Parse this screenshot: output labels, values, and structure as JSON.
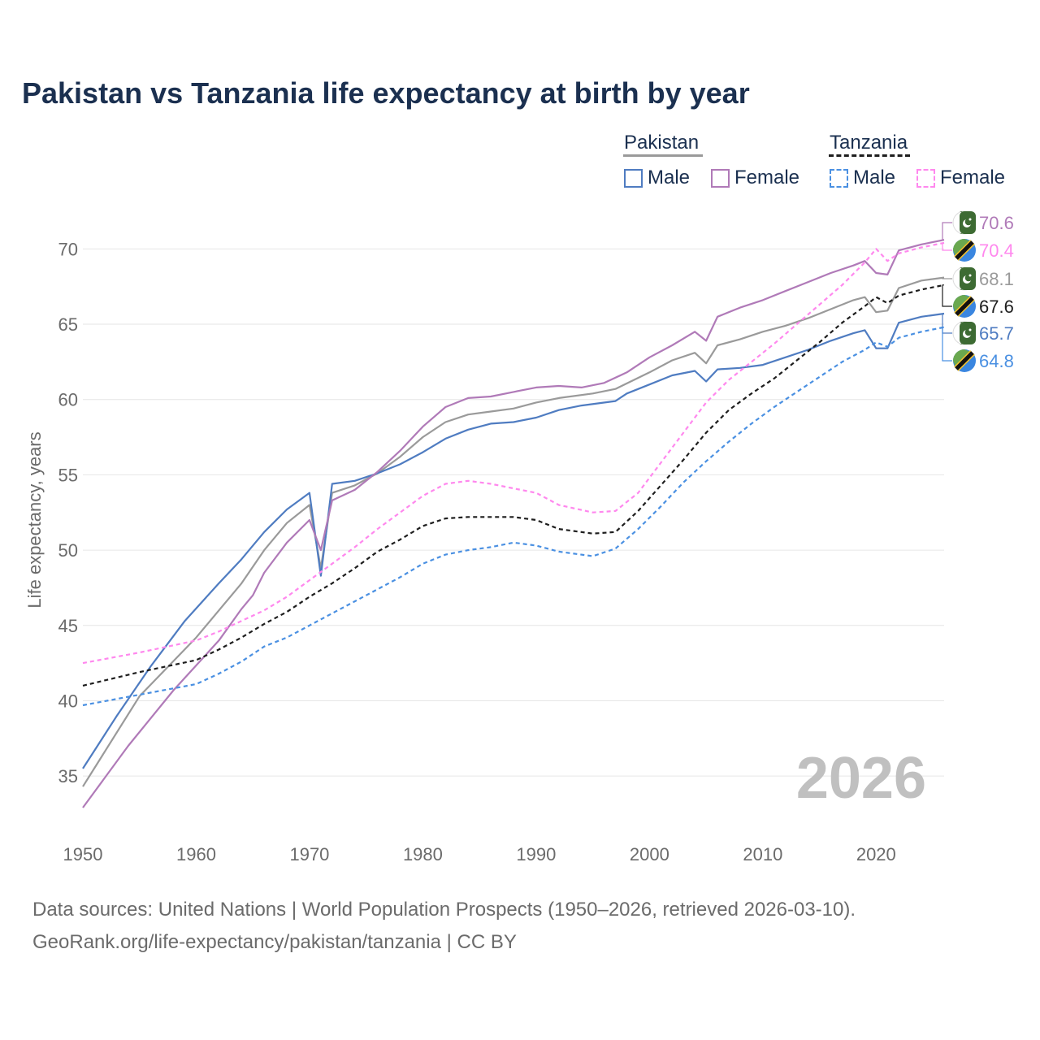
{
  "title": "Pakistan vs Tanzania life expectancy at birth by year",
  "legend": {
    "pakistan": {
      "title": "Pakistan",
      "male": "Male",
      "female": "Female"
    },
    "tanzania": {
      "title": "Tanzania",
      "male": "Male",
      "female": "Female"
    }
  },
  "footer": {
    "source": "Data sources: United Nations | World Population Prospects (1950–2026, retrieved 2026-03-10).",
    "credit": "GeoRank.org/life-expectancy/pakistan/tanzania | CC BY"
  },
  "colors": {
    "pk_total": "#9a9a9a",
    "pk_male": "#4f7cc1",
    "pk_female": "#b07ab8",
    "tz_total": "#1e1e1e",
    "tz_male": "#4a90e2",
    "tz_female": "#ff88ee",
    "grid": "#e6e6e6",
    "axis_text": "#6b6b6b",
    "title": "#1b3050",
    "watermark": "#c0c0c0"
  },
  "chart_data": {
    "type": "line",
    "ylabel": "Life expectancy, years",
    "xlabel": "",
    "xlim": [
      1950,
      2026
    ],
    "ylim": [
      31.5,
      72.5
    ],
    "x_ticks": [
      1950,
      1960,
      1970,
      1980,
      1990,
      2000,
      2010,
      2020
    ],
    "y_ticks": [
      35,
      40,
      45,
      50,
      55,
      60,
      65,
      70
    ],
    "grid": true,
    "year_watermark": "2026",
    "series": [
      {
        "name": "Pakistan total",
        "key": "pk_total",
        "dashed": false,
        "points": [
          [
            1950,
            34.3
          ],
          [
            1955,
            40.3
          ],
          [
            1960,
            44.2
          ],
          [
            1964,
            47.8
          ],
          [
            1966,
            50.0
          ],
          [
            1968,
            51.8
          ],
          [
            1970,
            53.0
          ],
          [
            1971,
            48.8
          ],
          [
            1972,
            53.8
          ],
          [
            1974,
            54.3
          ],
          [
            1976,
            55.1
          ],
          [
            1978,
            56.2
          ],
          [
            1980,
            57.5
          ],
          [
            1982,
            58.5
          ],
          [
            1984,
            59.0
          ],
          [
            1986,
            59.2
          ],
          [
            1988,
            59.4
          ],
          [
            1990,
            59.8
          ],
          [
            1992,
            60.1
          ],
          [
            1995,
            60.4
          ],
          [
            1997,
            60.7
          ],
          [
            2000,
            61.8
          ],
          [
            2002,
            62.6
          ],
          [
            2004,
            63.1
          ],
          [
            2005,
            62.4
          ],
          [
            2006,
            63.6
          ],
          [
            2008,
            64.0
          ],
          [
            2010,
            64.5
          ],
          [
            2012,
            64.9
          ],
          [
            2014,
            65.4
          ],
          [
            2016,
            66.0
          ],
          [
            2018,
            66.6
          ],
          [
            2019,
            66.8
          ],
          [
            2020,
            65.8
          ],
          [
            2021,
            65.9
          ],
          [
            2022,
            67.4
          ],
          [
            2024,
            67.9
          ],
          [
            2026,
            68.1
          ]
        ]
      },
      {
        "name": "Pakistan male",
        "key": "pk_male",
        "dashed": false,
        "points": [
          [
            1950,
            35.5
          ],
          [
            1953,
            39.0
          ],
          [
            1956,
            42.3
          ],
          [
            1959,
            45.3
          ],
          [
            1962,
            47.8
          ],
          [
            1964,
            49.4
          ],
          [
            1966,
            51.2
          ],
          [
            1968,
            52.7
          ],
          [
            1970,
            53.8
          ],
          [
            1971,
            48.3
          ],
          [
            1972,
            54.4
          ],
          [
            1974,
            54.6
          ],
          [
            1976,
            55.1
          ],
          [
            1978,
            55.7
          ],
          [
            1980,
            56.5
          ],
          [
            1982,
            57.4
          ],
          [
            1984,
            58.0
          ],
          [
            1986,
            58.4
          ],
          [
            1988,
            58.5
          ],
          [
            1990,
            58.8
          ],
          [
            1992,
            59.3
          ],
          [
            1994,
            59.6
          ],
          [
            1997,
            59.9
          ],
          [
            1998,
            60.4
          ],
          [
            2000,
            61.0
          ],
          [
            2002,
            61.6
          ],
          [
            2004,
            61.9
          ],
          [
            2005,
            61.2
          ],
          [
            2006,
            62.0
          ],
          [
            2008,
            62.1
          ],
          [
            2010,
            62.3
          ],
          [
            2012,
            62.8
          ],
          [
            2014,
            63.3
          ],
          [
            2016,
            63.9
          ],
          [
            2018,
            64.4
          ],
          [
            2019,
            64.6
          ],
          [
            2020,
            63.4
          ],
          [
            2021,
            63.4
          ],
          [
            2022,
            65.1
          ],
          [
            2024,
            65.5
          ],
          [
            2026,
            65.7
          ]
        ]
      },
      {
        "name": "Pakistan female",
        "key": "pk_female",
        "dashed": false,
        "points": [
          [
            1950,
            32.9
          ],
          [
            1954,
            37.0
          ],
          [
            1958,
            40.7
          ],
          [
            1962,
            44.0
          ],
          [
            1964,
            46.1
          ],
          [
            1965,
            47.0
          ],
          [
            1966,
            48.5
          ],
          [
            1968,
            50.5
          ],
          [
            1970,
            52.0
          ],
          [
            1971,
            50.0
          ],
          [
            1972,
            53.3
          ],
          [
            1974,
            54.0
          ],
          [
            1976,
            55.2
          ],
          [
            1978,
            56.6
          ],
          [
            1980,
            58.2
          ],
          [
            1982,
            59.5
          ],
          [
            1984,
            60.1
          ],
          [
            1986,
            60.2
          ],
          [
            1988,
            60.5
          ],
          [
            1990,
            60.8
          ],
          [
            1992,
            60.9
          ],
          [
            1994,
            60.8
          ],
          [
            1996,
            61.1
          ],
          [
            1998,
            61.8
          ],
          [
            2000,
            62.8
          ],
          [
            2002,
            63.6
          ],
          [
            2004,
            64.5
          ],
          [
            2005,
            63.9
          ],
          [
            2006,
            65.5
          ],
          [
            2008,
            66.1
          ],
          [
            2010,
            66.6
          ],
          [
            2012,
            67.2
          ],
          [
            2014,
            67.8
          ],
          [
            2016,
            68.4
          ],
          [
            2018,
            68.9
          ],
          [
            2019,
            69.2
          ],
          [
            2020,
            68.4
          ],
          [
            2021,
            68.3
          ],
          [
            2022,
            69.9
          ],
          [
            2024,
            70.3
          ],
          [
            2026,
            70.6
          ]
        ]
      },
      {
        "name": "Tanzania total",
        "key": "tz_total",
        "dashed": true,
        "points": [
          [
            1950,
            41.0
          ],
          [
            1955,
            41.9
          ],
          [
            1960,
            42.7
          ],
          [
            1962,
            43.4
          ],
          [
            1964,
            44.2
          ],
          [
            1966,
            45.1
          ],
          [
            1968,
            45.9
          ],
          [
            1970,
            46.9
          ],
          [
            1972,
            47.8
          ],
          [
            1974,
            48.8
          ],
          [
            1976,
            49.9
          ],
          [
            1978,
            50.7
          ],
          [
            1980,
            51.6
          ],
          [
            1982,
            52.1
          ],
          [
            1984,
            52.2
          ],
          [
            1986,
            52.2
          ],
          [
            1988,
            52.2
          ],
          [
            1990,
            52.0
          ],
          [
            1992,
            51.4
          ],
          [
            1995,
            51.1
          ],
          [
            1997,
            51.2
          ],
          [
            1999,
            52.6
          ],
          [
            2001,
            54.3
          ],
          [
            2003,
            56.0
          ],
          [
            2005,
            57.8
          ],
          [
            2007,
            59.3
          ],
          [
            2009,
            60.4
          ],
          [
            2011,
            61.4
          ],
          [
            2013,
            62.6
          ],
          [
            2015,
            63.8
          ],
          [
            2017,
            65.1
          ],
          [
            2019,
            66.2
          ],
          [
            2020,
            66.8
          ],
          [
            2021,
            66.4
          ],
          [
            2022,
            66.9
          ],
          [
            2024,
            67.3
          ],
          [
            2026,
            67.6
          ]
        ]
      },
      {
        "name": "Tanzania male",
        "key": "tz_male",
        "dashed": true,
        "points": [
          [
            1950,
            39.7
          ],
          [
            1955,
            40.4
          ],
          [
            1960,
            41.1
          ],
          [
            1962,
            41.8
          ],
          [
            1964,
            42.6
          ],
          [
            1966,
            43.6
          ],
          [
            1968,
            44.2
          ],
          [
            1970,
            45.0
          ],
          [
            1972,
            45.8
          ],
          [
            1974,
            46.6
          ],
          [
            1976,
            47.4
          ],
          [
            1978,
            48.2
          ],
          [
            1980,
            49.1
          ],
          [
            1982,
            49.7
          ],
          [
            1984,
            50.0
          ],
          [
            1986,
            50.2
          ],
          [
            1988,
            50.5
          ],
          [
            1990,
            50.3
          ],
          [
            1992,
            49.9
          ],
          [
            1995,
            49.6
          ],
          [
            1997,
            50.1
          ],
          [
            1999,
            51.4
          ],
          [
            2001,
            52.9
          ],
          [
            2003,
            54.5
          ],
          [
            2005,
            55.9
          ],
          [
            2007,
            57.2
          ],
          [
            2009,
            58.4
          ],
          [
            2011,
            59.5
          ],
          [
            2013,
            60.5
          ],
          [
            2015,
            61.5
          ],
          [
            2017,
            62.5
          ],
          [
            2019,
            63.3
          ],
          [
            2020,
            63.8
          ],
          [
            2021,
            63.5
          ],
          [
            2022,
            64.1
          ],
          [
            2024,
            64.5
          ],
          [
            2026,
            64.8
          ]
        ]
      },
      {
        "name": "Tanzania female",
        "key": "tz_female",
        "dashed": true,
        "points": [
          [
            1950,
            42.5
          ],
          [
            1955,
            43.2
          ],
          [
            1960,
            44.0
          ],
          [
            1962,
            44.6
          ],
          [
            1964,
            45.3
          ],
          [
            1966,
            46.0
          ],
          [
            1968,
            46.9
          ],
          [
            1970,
            48.0
          ],
          [
            1972,
            49.1
          ],
          [
            1974,
            50.2
          ],
          [
            1976,
            51.4
          ],
          [
            1978,
            52.5
          ],
          [
            1980,
            53.6
          ],
          [
            1982,
            54.4
          ],
          [
            1984,
            54.6
          ],
          [
            1986,
            54.4
          ],
          [
            1988,
            54.1
          ],
          [
            1990,
            53.8
          ],
          [
            1992,
            53.0
          ],
          [
            1995,
            52.5
          ],
          [
            1997,
            52.6
          ],
          [
            1999,
            53.8
          ],
          [
            2001,
            55.8
          ],
          [
            2003,
            57.8
          ],
          [
            2005,
            59.8
          ],
          [
            2007,
            61.3
          ],
          [
            2009,
            62.5
          ],
          [
            2011,
            63.7
          ],
          [
            2013,
            65.0
          ],
          [
            2015,
            66.3
          ],
          [
            2017,
            67.6
          ],
          [
            2019,
            69.1
          ],
          [
            2020,
            70.0
          ],
          [
            2021,
            69.2
          ],
          [
            2022,
            69.7
          ],
          [
            2024,
            70.1
          ],
          [
            2026,
            70.4
          ]
        ]
      }
    ],
    "end_labels": [
      {
        "key": "pk_female",
        "value": 70.6,
        "label": "70.6",
        "country": "Pakistan"
      },
      {
        "key": "tz_female",
        "value": 70.4,
        "label": "70.4",
        "country": "Tanzania"
      },
      {
        "key": "pk_total",
        "value": 68.1,
        "label": "68.1",
        "country": "Pakistan"
      },
      {
        "key": "tz_total",
        "value": 67.6,
        "label": "67.6",
        "country": "Tanzania"
      },
      {
        "key": "pk_male",
        "value": 65.7,
        "label": "65.7",
        "country": "Pakistan"
      },
      {
        "key": "tz_male",
        "value": 64.8,
        "label": "64.8",
        "country": "Tanzania"
      }
    ]
  }
}
